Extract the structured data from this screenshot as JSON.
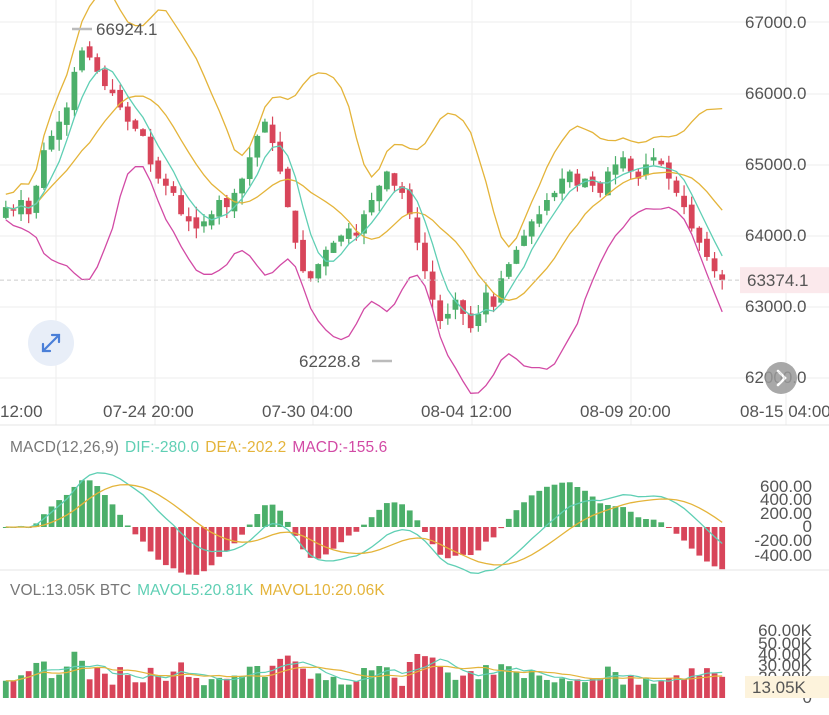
{
  "colors": {
    "up": "#4caf6a",
    "down": "#d8455a",
    "ma_upper": "#e4b43a",
    "ma_mid": "#e4b43a",
    "ma_fast": "#5fcfb4",
    "boll_low": "#d24aa5",
    "dif": "#5fcfb4",
    "dea": "#e4b43a",
    "grid": "#eeeeee",
    "price_tag": "#d8455a"
  },
  "icons": {
    "expand": "expand-arrows-icon",
    "scroll": "chevron-right-icon"
  },
  "main": {
    "y_ticks": [
      "67000.0",
      "66000.0",
      "65000.0",
      "64000.0",
      "63000.0",
      "62000.0"
    ],
    "x_ticks": [
      "12:00",
      "07-24 20:00",
      "07-30 04:00",
      "08-04 12:00",
      "08-09 20:00",
      "08-15 04:00"
    ],
    "high_label": "66924.1",
    "low_label": "62228.8",
    "last_price": "63374.1"
  },
  "macd": {
    "label": "MACD(12,26,9)",
    "dif": "DIF:-280.0",
    "dea": "DEA:-202.2",
    "macd": "MACD:-155.6",
    "ticks": [
      "600.00",
      "400.00",
      "200.00",
      "0",
      "-200.00",
      "-400.00"
    ]
  },
  "vol": {
    "label": "VOL:13.05K BTC",
    "mavol5": "MAVOL5:20.81K",
    "mavol10": "MAVOL10:20.06K",
    "ticks": [
      "60.00K",
      "50.00K",
      "40.00K",
      "30.00K",
      "20.00K",
      "0"
    ],
    "last": "13.05K"
  },
  "chart_data": [
    {
      "type": "candlestick",
      "y_range": [
        61900,
        67200
      ],
      "x_ticks": [
        "12:00",
        "07-24 20:00",
        "07-30 04:00",
        "08-04 12:00",
        "08-09 20:00",
        "08-15 04:00"
      ],
      "close": [
        64400,
        64350,
        64500,
        64300,
        64700,
        65200,
        65400,
        65600,
        65800,
        66300,
        66600,
        66500,
        66300,
        66100,
        66000,
        65800,
        65600,
        65500,
        65400,
        65000,
        64800,
        64700,
        64600,
        64300,
        64200,
        64100,
        64200,
        64300,
        64500,
        64400,
        64600,
        64800,
        65100,
        65400,
        65600,
        65300,
        64900,
        64400,
        63900,
        63500,
        63400,
        63600,
        63800,
        63900,
        64000,
        64100,
        64000,
        64300,
        64500,
        64700,
        64900,
        64700,
        64600,
        64300,
        63900,
        63500,
        63100,
        62800,
        62900,
        63100,
        62900,
        62700,
        62900,
        63200,
        63000,
        63400,
        63600,
        63800,
        64000,
        64200,
        64300,
        64500,
        64600,
        64800,
        64900,
        64700,
        64800,
        64700,
        64600,
        64900,
        65000,
        65100,
        64900,
        64800,
        65000,
        65100,
        65000,
        64800,
        64600,
        64400,
        64100,
        63900,
        63700,
        63500,
        63374.1
      ],
      "overlays": [
        "BOLL upper",
        "BOLL mid",
        "MA fast",
        "BOLL lower"
      ]
    },
    {
      "type": "bar",
      "name": "MACD",
      "y_range": [
        -450,
        650
      ],
      "note": "histogram with DIF and DEA lines"
    },
    {
      "type": "bar",
      "name": "VOL",
      "y_range": [
        0,
        62000
      ]
    }
  ]
}
